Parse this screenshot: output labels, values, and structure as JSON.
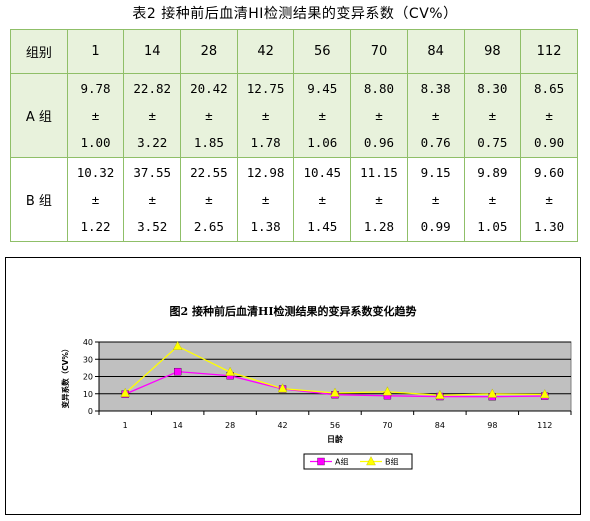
{
  "table": {
    "title": "表2 接种前后血清HI检测结果的变异系数（CV%）",
    "header_label": "组别",
    "days": [
      "1",
      "14",
      "28",
      "42",
      "56",
      "70",
      "84",
      "98",
      "112"
    ],
    "rows": [
      {
        "group": "A 组",
        "class": "row-a",
        "mean": [
          "9.78",
          "22.82",
          "20.42",
          "12.75",
          "9.45",
          "8.80",
          "8.38",
          "8.30",
          "8.65"
        ],
        "pm": "±",
        "sd": [
          "1.00",
          "3.22",
          "1.85",
          "1.78",
          "1.06",
          "0.96",
          "0.76",
          "0.75",
          "0.90"
        ]
      },
      {
        "group": "B 组",
        "class": "row-b",
        "mean": [
          "10.32",
          "37.55",
          "22.55",
          "12.98",
          "10.45",
          "11.15",
          "9.15",
          "9.89",
          "9.60"
        ],
        "pm": "±",
        "sd": [
          "1.22",
          "3.52",
          "2.65",
          "1.38",
          "1.45",
          "1.28",
          "0.99",
          "1.05",
          "1.30"
        ]
      }
    ]
  },
  "chart_data": {
    "type": "line",
    "title": "图2 接种前后血清HI检测结果的变异系数变化趋势",
    "xlabel": "日龄",
    "ylabel": "变异系数（CV%）",
    "categories": [
      "1",
      "14",
      "28",
      "42",
      "56",
      "70",
      "84",
      "98",
      "112"
    ],
    "ylim": [
      0,
      40
    ],
    "yticks": [
      0,
      10,
      20,
      30,
      40
    ],
    "grid": true,
    "legend_position": "bottom",
    "plot_background": "#c0c0c0",
    "series": [
      {
        "name": "A组",
        "color": "#ff00ff",
        "marker": "square",
        "values": [
          9.78,
          22.82,
          20.42,
          12.75,
          9.45,
          8.8,
          8.38,
          8.3,
          8.65
        ]
      },
      {
        "name": "B组",
        "color": "#ffff00",
        "marker": "triangle",
        "values": [
          10.32,
          37.55,
          22.55,
          12.98,
          10.45,
          11.15,
          9.15,
          9.89,
          9.6
        ]
      }
    ]
  }
}
